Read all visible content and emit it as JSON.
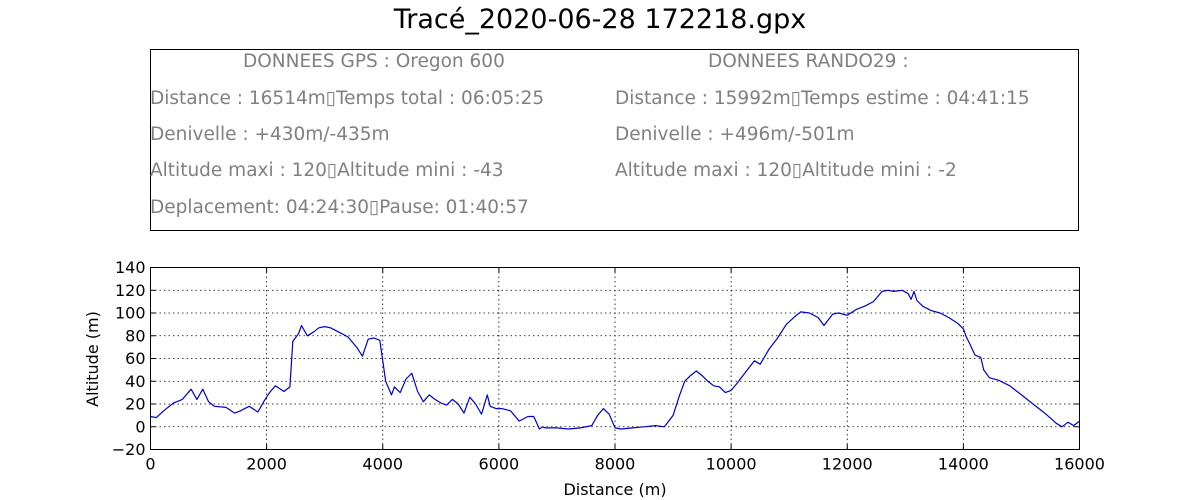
{
  "title": "Tracé_2020-06-28 172218.gpx",
  "info_box": {
    "gps": {
      "header": "DONNEES GPS :  Oregon 600",
      "lines": [
        "Distance : 16514m▯Temps total : 06:05:25",
        "Denivelle : +430m/-435m",
        "Altitude maxi : 120▯Altitude mini : -43",
        "Deplacement: 04:24:30▯Pause: 01:40:57"
      ]
    },
    "rando": {
      "header": "DONNEES RANDO29  :",
      "lines": [
        "Distance : 15992m▯Temps estime : 04:41:15",
        "Denivelle : +496m/-501m",
        "Altitude maxi : 120▯Altitude mini : -2"
      ]
    }
  },
  "chart_data": {
    "type": "line",
    "xlabel": "Distance (m)",
    "ylabel": "Altitude (m)",
    "xlim": [
      0,
      16000
    ],
    "ylim": [
      -20,
      140
    ],
    "xticks": [
      0,
      2000,
      4000,
      6000,
      8000,
      10000,
      12000,
      14000,
      16000
    ],
    "yticks": [
      -20,
      0,
      20,
      40,
      60,
      80,
      100,
      120,
      140
    ],
    "grid": true,
    "series": [
      {
        "color": "#0000cc",
        "x": [
          0,
          100,
          250,
          400,
          550,
          700,
          800,
          900,
          1000,
          1100,
          1300,
          1450,
          1550,
          1700,
          1850,
          1950,
          2050,
          2150,
          2300,
          2400,
          2450,
          2550,
          2600,
          2700,
          2800,
          2900,
          3000,
          3100,
          3250,
          3400,
          3550,
          3650,
          3750,
          3850,
          3950,
          4050,
          4150,
          4200,
          4300,
          4400,
          4500,
          4600,
          4700,
          4800,
          4900,
          5000,
          5100,
          5200,
          5300,
          5400,
          5500,
          5600,
          5700,
          5800,
          5850,
          5950,
          6050,
          6200,
          6350,
          6500,
          6600,
          6700,
          6750,
          6800,
          7000,
          7200,
          7400,
          7600,
          7700,
          7800,
          7900,
          8000,
          8100,
          8300,
          8500,
          8700,
          8850,
          9000,
          9100,
          9200,
          9300,
          9400,
          9500,
          9600,
          9700,
          9800,
          9900,
          10000,
          10100,
          10250,
          10400,
          10500,
          10650,
          10800,
          10950,
          11100,
          11200,
          11350,
          11500,
          11600,
          11750,
          11850,
          12000,
          12150,
          12300,
          12450,
          12600,
          12700,
          12800,
          12950,
          13050,
          13100,
          13150,
          13200,
          13300,
          13450,
          13600,
          13750,
          13900,
          14000,
          14050,
          14100,
          14200,
          14300,
          14350,
          14450,
          14600,
          14800,
          15000,
          15200,
          15400,
          15600,
          15700,
          15800,
          15900,
          16000
        ],
        "y": [
          9,
          8,
          15,
          21,
          24,
          33,
          24,
          33,
          22,
          18,
          17,
          12,
          14,
          18,
          13,
          22,
          30,
          36,
          31,
          35,
          75,
          82,
          89,
          80,
          83,
          87,
          88,
          87,
          83,
          79,
          70,
          62,
          77,
          78,
          76,
          40,
          28,
          35,
          30,
          42,
          47,
          31,
          22,
          28,
          24,
          21,
          19,
          24,
          20,
          12,
          26,
          20,
          11,
          28,
          18,
          16,
          16,
          14,
          5,
          9,
          9,
          -2,
          0,
          -1,
          -1,
          -2,
          -1,
          1,
          10,
          16,
          11,
          -1,
          -2,
          -1,
          0,
          1,
          0,
          10,
          26,
          40,
          45,
          49,
          45,
          40,
          36,
          35,
          30,
          32,
          38,
          48,
          58,
          55,
          68,
          78,
          90,
          97,
          101,
          100,
          96,
          89,
          99,
          100,
          98,
          103,
          106,
          110,
          119,
          120,
          119,
          120,
          117,
          112,
          119,
          111,
          106,
          102,
          100,
          96,
          91,
          86,
          79,
          74,
          63,
          61,
          50,
          43,
          41,
          36,
          28,
          20,
          12,
          3,
          0,
          4,
          1,
          5
        ]
      }
    ]
  }
}
